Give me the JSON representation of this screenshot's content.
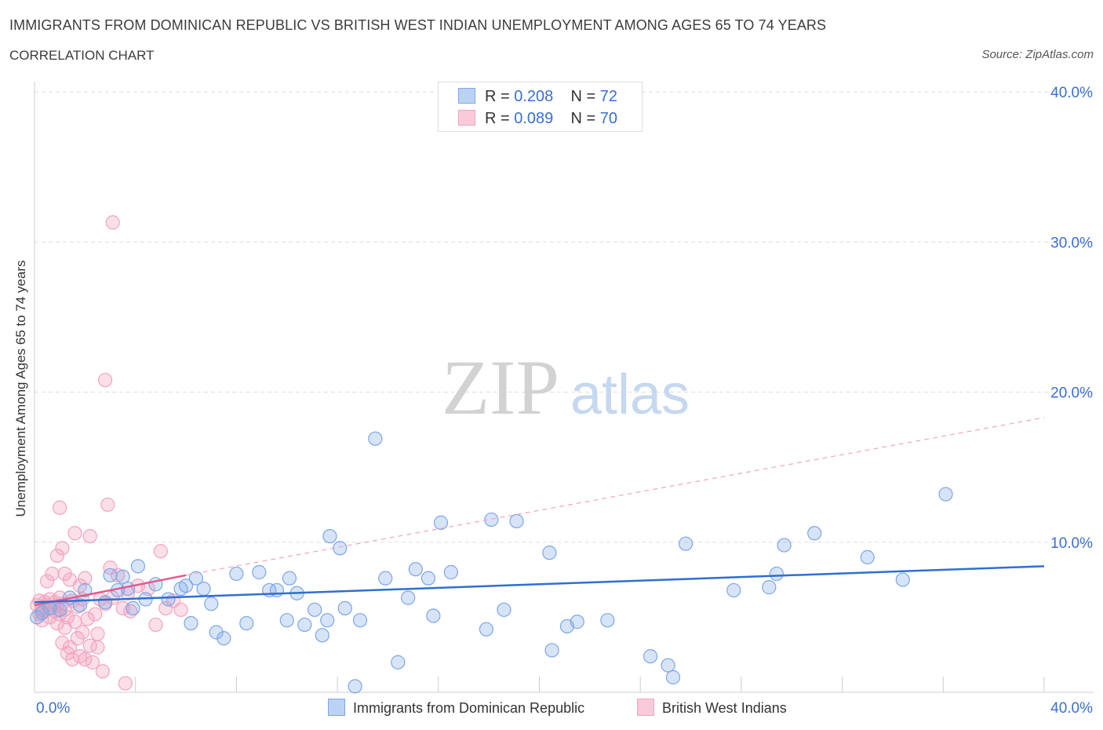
{
  "title": "IMMIGRANTS FROM DOMINICAN REPUBLIC VS BRITISH WEST INDIAN UNEMPLOYMENT AMONG AGES 65 TO 74 YEARS",
  "subtitle": "CORRELATION CHART",
  "source": "Source: ZipAtlas.com",
  "watermark": {
    "zip": "ZIP",
    "atlas": "atlas"
  },
  "legend": {
    "series1": {
      "r_label": "R = ",
      "r_value": "0.208",
      "n_label": "N = ",
      "n_value": "72"
    },
    "series2": {
      "r_label": "R = ",
      "r_value": "0.089",
      "n_label": "N = ",
      "n_value": "70"
    }
  },
  "chart_data": {
    "type": "scatter",
    "title": "IMMIGRANTS FROM DOMINICAN REPUBLIC VS BRITISH WEST INDIAN UNEMPLOYMENT AMONG AGES 65 TO 74 YEARS",
    "xlabel": "",
    "ylabel": "Unemployment Among Ages 65 to 74 years",
    "xlim": [
      0,
      40
    ],
    "ylim": [
      0,
      40
    ],
    "x_tick_labels": [
      "0.0%",
      "40.0%"
    ],
    "y_tick_labels": [
      "10.0%",
      "20.0%",
      "30.0%",
      "40.0%"
    ],
    "y_ticks": [
      10,
      20,
      30,
      40
    ],
    "colors": {
      "blue": "#7aa6e8",
      "blue_line": "#2f6fd1",
      "pink": "#f3a3bd",
      "pink_line": "#e35a8a",
      "axis_text": "#3a6fd0"
    },
    "series": [
      {
        "name": "Immigrants from Dominican Republic",
        "color": "#7aa6e8",
        "trend": {
          "x": [
            0,
            40
          ],
          "y": [
            6.0,
            8.4
          ]
        },
        "points": [
          [
            0.1,
            5.0
          ],
          [
            0.3,
            5.3
          ],
          [
            0.6,
            5.6
          ],
          [
            1.0,
            5.5
          ],
          [
            1.4,
            6.3
          ],
          [
            1.8,
            5.8
          ],
          [
            2.0,
            6.8
          ],
          [
            2.8,
            6.0
          ],
          [
            3.0,
            7.8
          ],
          [
            3.3,
            6.8
          ],
          [
            3.7,
            6.9
          ],
          [
            3.5,
            7.7
          ],
          [
            3.9,
            5.6
          ],
          [
            4.1,
            8.4
          ],
          [
            4.4,
            6.2
          ],
          [
            4.8,
            7.2
          ],
          [
            5.3,
            6.2
          ],
          [
            5.8,
            6.9
          ],
          [
            6.0,
            7.1
          ],
          [
            6.2,
            4.6
          ],
          [
            6.7,
            6.9
          ],
          [
            6.4,
            7.6
          ],
          [
            7.2,
            4.0
          ],
          [
            7.0,
            5.9
          ],
          [
            7.5,
            3.6
          ],
          [
            8.0,
            7.9
          ],
          [
            8.4,
            4.6
          ],
          [
            8.9,
            8.0
          ],
          [
            9.3,
            6.8
          ],
          [
            9.6,
            6.8
          ],
          [
            10.0,
            4.8
          ],
          [
            10.1,
            7.6
          ],
          [
            10.4,
            6.6
          ],
          [
            10.7,
            4.5
          ],
          [
            11.1,
            5.5
          ],
          [
            11.4,
            3.8
          ],
          [
            11.6,
            4.8
          ],
          [
            11.7,
            10.4
          ],
          [
            12.1,
            9.6
          ],
          [
            12.3,
            5.6
          ],
          [
            12.7,
            0.4
          ],
          [
            12.9,
            4.8
          ],
          [
            13.5,
            16.9
          ],
          [
            13.9,
            7.6
          ],
          [
            14.4,
            2.0
          ],
          [
            14.8,
            6.3
          ],
          [
            15.1,
            8.2
          ],
          [
            15.6,
            7.6
          ],
          [
            15.8,
            5.1
          ],
          [
            16.1,
            11.3
          ],
          [
            16.5,
            8.0
          ],
          [
            17.9,
            4.2
          ],
          [
            18.1,
            11.5
          ],
          [
            18.6,
            5.5
          ],
          [
            19.1,
            11.4
          ],
          [
            20.4,
            9.3
          ],
          [
            20.5,
            2.8
          ],
          [
            21.1,
            4.4
          ],
          [
            21.5,
            4.7
          ],
          [
            22.7,
            4.8
          ],
          [
            24.4,
            2.4
          ],
          [
            25.1,
            1.8
          ],
          [
            25.3,
            1.0
          ],
          [
            25.8,
            9.9
          ],
          [
            27.7,
            6.8
          ],
          [
            29.1,
            7.0
          ],
          [
            29.4,
            7.9
          ],
          [
            29.7,
            9.8
          ],
          [
            30.9,
            10.6
          ],
          [
            33.0,
            9.0
          ],
          [
            34.4,
            7.5
          ],
          [
            36.1,
            13.2
          ]
        ]
      },
      {
        "name": "British West Indians",
        "color": "#f3a3bd",
        "trend": {
          "x": [
            0,
            6.0
          ],
          "y": [
            5.8,
            7.8
          ]
        },
        "trend_dashed": {
          "x": [
            6.0,
            40
          ],
          "y": [
            7.8,
            18.3
          ]
        },
        "points": [
          [
            0.1,
            5.8
          ],
          [
            0.2,
            5.2
          ],
          [
            0.2,
            6.1
          ],
          [
            0.3,
            5.5
          ],
          [
            0.3,
            4.8
          ],
          [
            0.4,
            6.0
          ],
          [
            0.4,
            5.4
          ],
          [
            0.5,
            7.4
          ],
          [
            0.5,
            5.8
          ],
          [
            0.6,
            6.2
          ],
          [
            0.6,
            5.0
          ],
          [
            0.7,
            7.9
          ],
          [
            0.7,
            5.6
          ],
          [
            0.8,
            6.0
          ],
          [
            0.8,
            5.4
          ],
          [
            0.9,
            9.1
          ],
          [
            0.9,
            5.8
          ],
          [
            1.0,
            6.3
          ],
          [
            1.0,
            5.2
          ],
          [
            1.0,
            12.3
          ],
          [
            1.1,
            9.6
          ],
          [
            1.1,
            3.3
          ],
          [
            1.1,
            5.9
          ],
          [
            1.2,
            7.9
          ],
          [
            1.2,
            5.5
          ],
          [
            1.3,
            2.6
          ],
          [
            1.3,
            5.0
          ],
          [
            1.4,
            7.5
          ],
          [
            1.4,
            3.0
          ],
          [
            1.5,
            6.1
          ],
          [
            1.5,
            2.2
          ],
          [
            1.6,
            4.7
          ],
          [
            1.6,
            10.6
          ],
          [
            1.7,
            3.6
          ],
          [
            1.7,
            5.7
          ],
          [
            1.8,
            7.1
          ],
          [
            1.8,
            2.4
          ],
          [
            1.9,
            4.0
          ],
          [
            1.9,
            6.2
          ],
          [
            2.0,
            2.2
          ],
          [
            2.0,
            7.6
          ],
          [
            2.1,
            4.9
          ],
          [
            2.2,
            10.4
          ],
          [
            2.2,
            3.1
          ],
          [
            2.3,
            2.0
          ],
          [
            2.4,
            5.2
          ],
          [
            2.5,
            3.9
          ],
          [
            2.6,
            6.2
          ],
          [
            2.7,
            1.4
          ],
          [
            2.8,
            5.9
          ],
          [
            2.8,
            20.8
          ],
          [
            2.9,
            12.5
          ],
          [
            3.0,
            8.3
          ],
          [
            3.1,
            31.3
          ],
          [
            3.1,
            6.3
          ],
          [
            3.3,
            7.8
          ],
          [
            3.5,
            5.6
          ],
          [
            3.6,
            0.6
          ],
          [
            3.7,
            6.6
          ],
          [
            3.8,
            5.4
          ],
          [
            4.1,
            7.1
          ],
          [
            4.5,
            6.9
          ],
          [
            4.8,
            4.5
          ],
          [
            5.0,
            9.4
          ],
          [
            5.2,
            5.6
          ],
          [
            5.5,
            6.1
          ],
          [
            5.8,
            5.5
          ],
          [
            2.5,
            3.0
          ],
          [
            1.2,
            4.3
          ],
          [
            0.9,
            4.6
          ]
        ]
      }
    ]
  },
  "bottom_legend": {
    "series1": "Immigrants from Dominican Republic",
    "series2": "British West Indians"
  }
}
